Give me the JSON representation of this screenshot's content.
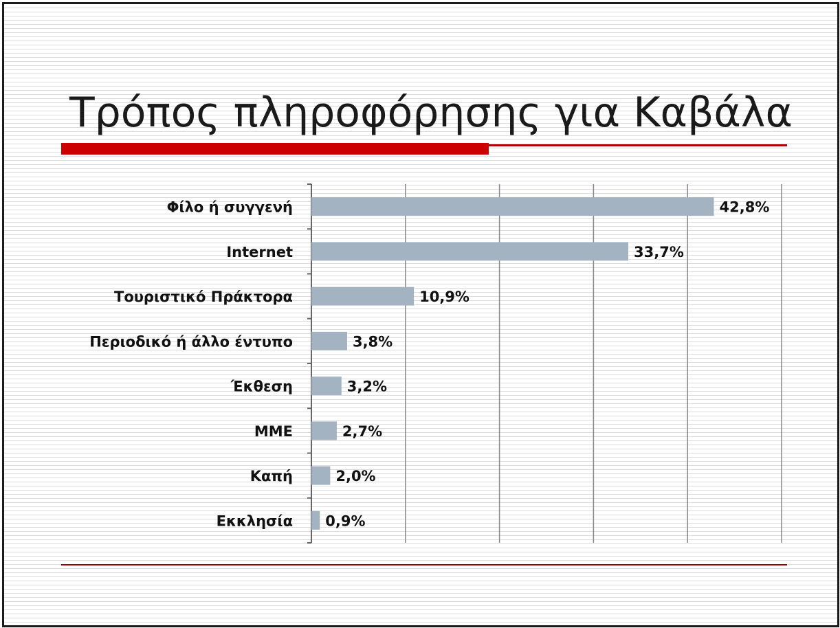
{
  "slide": {
    "title": "Τρόπος πληροφόρησης για Καβάλα"
  },
  "colors": {
    "bar": "#a4b3c2",
    "accent_red": "#cc0000",
    "gridline": "#888888"
  },
  "chart_data": {
    "type": "bar",
    "orientation": "horizontal",
    "title": "Τρόπος πληροφόρησης για Καβάλα",
    "categories": [
      "Φίλο ή συγγενή",
      "Internet",
      "Τουριστικό Πράκτορα",
      "Περιοδικό ή άλλο έντυπο",
      "Έκθεση",
      "ΜΜΕ",
      "Καπή",
      "Εκκλησία"
    ],
    "values": [
      42.8,
      33.7,
      10.9,
      3.8,
      3.2,
      2.7,
      2.0,
      0.9
    ],
    "value_labels": [
      "42,8%",
      "33,7%",
      "10,9%",
      "3,8%",
      "3,2%",
      "2,7%",
      "2,0%",
      "0,9%"
    ],
    "xlim": [
      0,
      50
    ],
    "grid": true,
    "legend": "none"
  }
}
